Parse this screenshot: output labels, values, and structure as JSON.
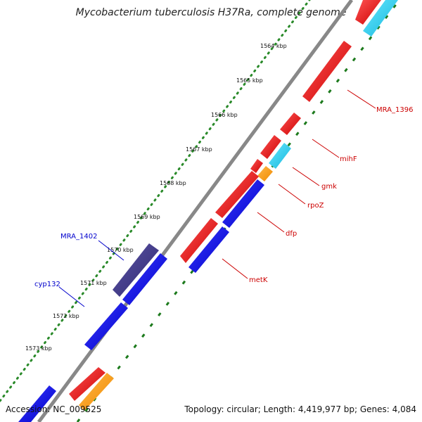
{
  "title": "Mycobacterium tuberculosis H37Ra, complete genome",
  "footer": {
    "accession": "Accession: NC_009525",
    "summary": "Topology: circular; Length: 4,419,977 bp; Genes: 4,084"
  },
  "colors": {
    "backbone": "#888888",
    "tick_dot": "#2a8a2a",
    "tick_dash": "#1c7a1c",
    "label_red": "#cc0000",
    "label_blue": "#0000cc",
    "gene_red": "#ee0000",
    "gene_cyan": "#22ccee",
    "gene_orange": "#ff9900",
    "gene_blue": "#0000ee",
    "gene_purple": "#3d3585"
  },
  "axis_labels": [
    "1564 kbp",
    "1565 kbp",
    "1566 kbp",
    "1567 kbp",
    "1568 kbp",
    "1569 kbp",
    "1570 kbp",
    "1571 kbp",
    "1572 kbp",
    "1573 kbp"
  ],
  "gene_labels": [
    {
      "text": "MRA_1396",
      "color": "red"
    },
    {
      "text": "mihF",
      "color": "red"
    },
    {
      "text": "gmk",
      "color": "red"
    },
    {
      "text": "rpoZ",
      "color": "red"
    },
    {
      "text": "dfp",
      "color": "red"
    },
    {
      "text": "metK",
      "color": "red"
    },
    {
      "text": "MRA_1402",
      "color": "blue"
    },
    {
      "text": "cyp132",
      "color": "blue"
    }
  ]
}
